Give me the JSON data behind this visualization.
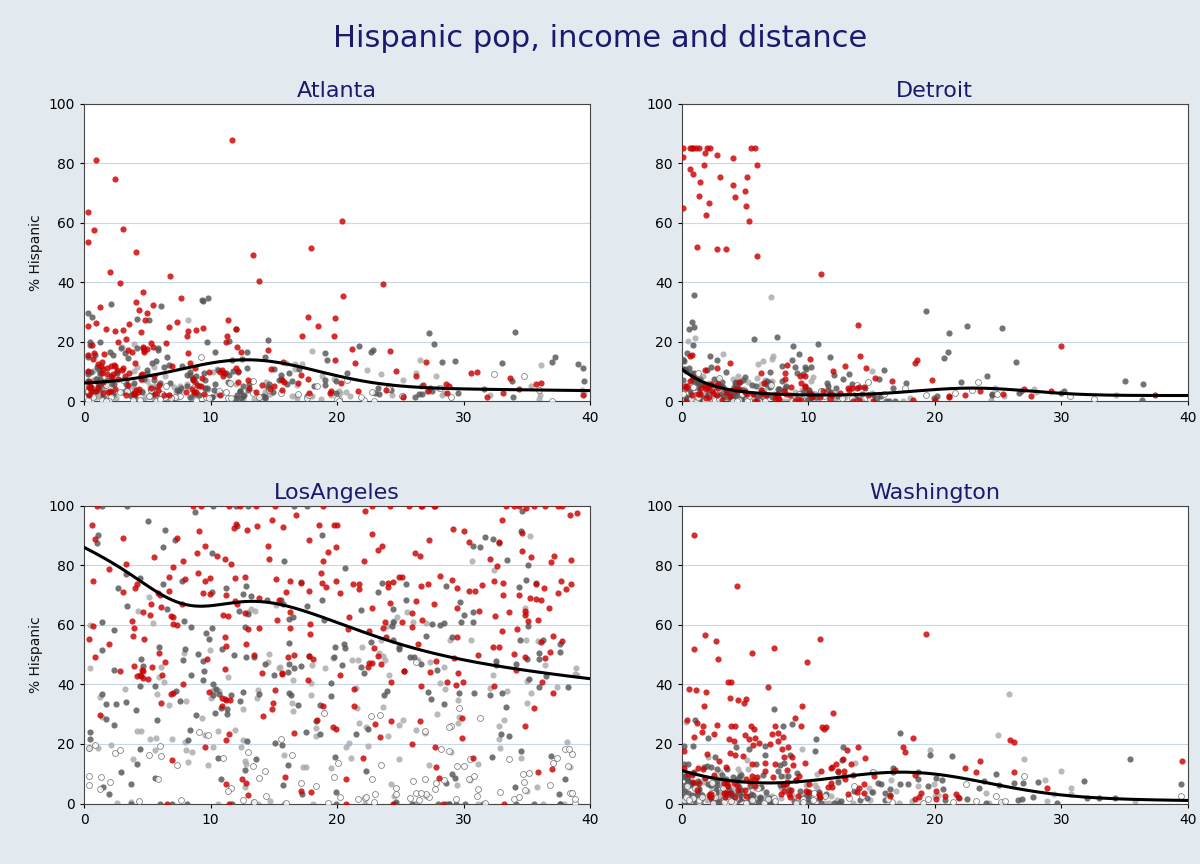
{
  "title": "Hispanic pop, income and distance",
  "title_color": "#1a1a6e",
  "title_fontsize": 22,
  "subplot_titles": [
    "Atlanta",
    "Detroit",
    "LosAngeles",
    "Washington"
  ],
  "subplot_title_color": "#1a1a6e",
  "subplot_title_fontsize": 16,
  "ylabel": "% Hispanic",
  "xlim": [
    0,
    40
  ],
  "ylim": [
    0,
    100
  ],
  "xticks": [
    0,
    10,
    20,
    30,
    40
  ],
  "yticks": [
    0,
    20,
    40,
    60,
    80,
    100
  ],
  "background_color": "#e2eaf0",
  "plot_bg_color": "#ffffff",
  "color_red": "#cc0000",
  "color_dark": "#555555",
  "color_light": "#aaaaaa",
  "color_open": "#ffffff",
  "dot_size": 20,
  "dot_alpha": 0.82,
  "line_color": "#000000",
  "line_width": 2.2,
  "grid_color": "#c8d8e8",
  "tick_fontsize": 10,
  "label_fontsize": 10
}
